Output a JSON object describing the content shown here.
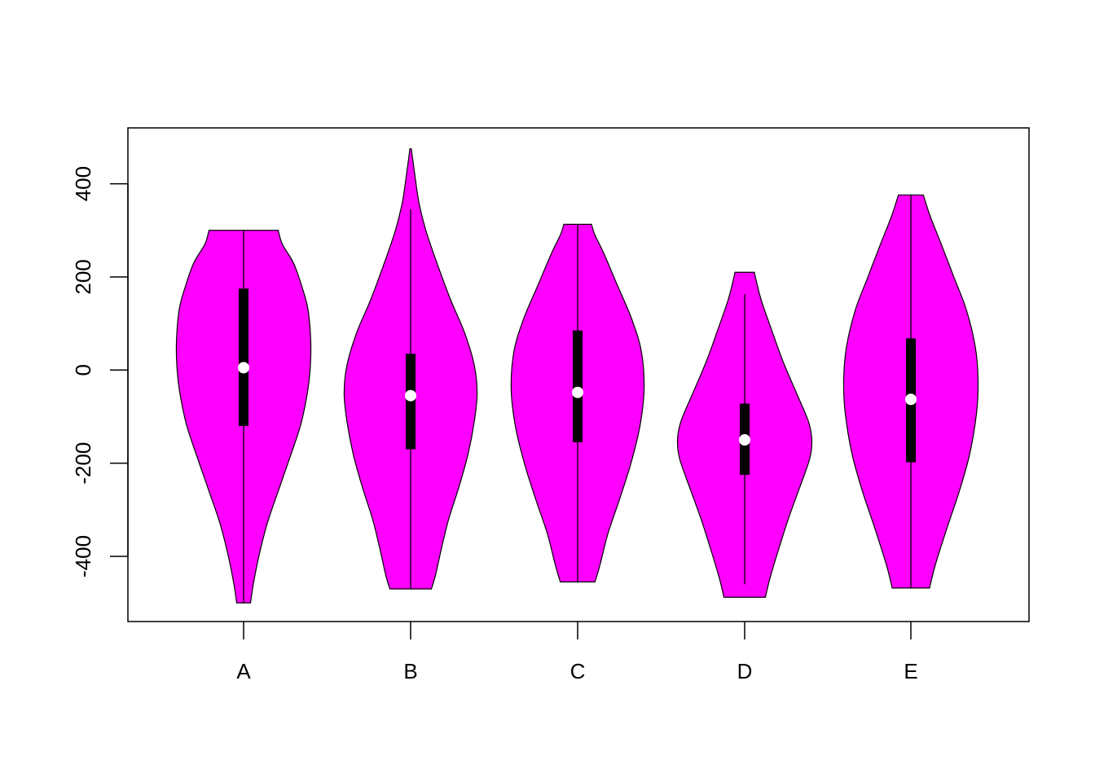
{
  "chart_data": {
    "type": "violin",
    "title": "",
    "xlabel": "",
    "ylabel": "",
    "categories": [
      "A",
      "B",
      "C",
      "D",
      "E"
    ],
    "ylim": [
      -540,
      520
    ],
    "yticks": [
      -400,
      -200,
      0,
      200,
      400
    ],
    "ytick_labels": [
      "-400",
      "-200",
      "0",
      "200",
      "400"
    ],
    "fill_color": "#FF00FF",
    "grid": false,
    "legend": "none",
    "violins": [
      {
        "category": "A",
        "min": -500,
        "q1": -120,
        "median": 5,
        "q3": 175,
        "max": 300,
        "whisker_low": -500,
        "whisker_high": 300,
        "profile": [
          [
            -500,
            0.1
          ],
          [
            -460,
            0.14
          ],
          [
            -400,
            0.22
          ],
          [
            -330,
            0.34
          ],
          [
            -260,
            0.5
          ],
          [
            -200,
            0.64
          ],
          [
            -120,
            0.82
          ],
          [
            -50,
            0.92
          ],
          [
            0,
            0.96
          ],
          [
            60,
            0.97
          ],
          [
            130,
            0.93
          ],
          [
            180,
            0.84
          ],
          [
            230,
            0.72
          ],
          [
            270,
            0.56
          ],
          [
            300,
            0.5
          ]
        ]
      },
      {
        "category": "B",
        "min": -470,
        "q1": -170,
        "median": -55,
        "q3": 35,
        "max": 475,
        "whisker_low": -470,
        "whisker_high": 345,
        "profile": [
          [
            -470,
            0.3
          ],
          [
            -440,
            0.36
          ],
          [
            -380,
            0.45
          ],
          [
            -320,
            0.55
          ],
          [
            -250,
            0.7
          ],
          [
            -180,
            0.83
          ],
          [
            -110,
            0.92
          ],
          [
            -50,
            0.96
          ],
          [
            10,
            0.92
          ],
          [
            80,
            0.78
          ],
          [
            150,
            0.58
          ],
          [
            230,
            0.38
          ],
          [
            300,
            0.22
          ],
          [
            360,
            0.12
          ],
          [
            420,
            0.06
          ],
          [
            475,
            0.01
          ]
        ]
      },
      {
        "category": "C",
        "min": -455,
        "q1": -155,
        "median": -48,
        "q3": 85,
        "max": 313,
        "whisker_low": -455,
        "whisker_high": 313,
        "profile": [
          [
            -455,
            0.25
          ],
          [
            -420,
            0.32
          ],
          [
            -350,
            0.44
          ],
          [
            -280,
            0.6
          ],
          [
            -200,
            0.77
          ],
          [
            -120,
            0.9
          ],
          [
            -40,
            0.96
          ],
          [
            40,
            0.92
          ],
          [
            110,
            0.78
          ],
          [
            180,
            0.58
          ],
          [
            250,
            0.38
          ],
          [
            290,
            0.25
          ],
          [
            313,
            0.2
          ]
        ]
      },
      {
        "category": "D",
        "min": -488,
        "q1": -225,
        "median": -150,
        "q3": -72,
        "max": 210,
        "whisker_low": -460,
        "whisker_high": 163,
        "profile": [
          [
            -488,
            0.3
          ],
          [
            -450,
            0.36
          ],
          [
            -390,
            0.48
          ],
          [
            -320,
            0.63
          ],
          [
            -250,
            0.8
          ],
          [
            -190,
            0.94
          ],
          [
            -150,
            0.97
          ],
          [
            -110,
            0.92
          ],
          [
            -50,
            0.75
          ],
          [
            20,
            0.55
          ],
          [
            90,
            0.38
          ],
          [
            150,
            0.24
          ],
          [
            190,
            0.17
          ],
          [
            210,
            0.14
          ]
        ]
      },
      {
        "category": "E",
        "min": -468,
        "q1": -198,
        "median": -63,
        "q3": 68,
        "max": 376,
        "whisker_low": -468,
        "whisker_high": 376,
        "profile": [
          [
            -468,
            0.27
          ],
          [
            -420,
            0.35
          ],
          [
            -340,
            0.52
          ],
          [
            -260,
            0.7
          ],
          [
            -180,
            0.85
          ],
          [
            -90,
            0.95
          ],
          [
            -20,
            0.97
          ],
          [
            50,
            0.93
          ],
          [
            130,
            0.8
          ],
          [
            200,
            0.62
          ],
          [
            270,
            0.44
          ],
          [
            330,
            0.28
          ],
          [
            376,
            0.18
          ]
        ]
      }
    ]
  }
}
